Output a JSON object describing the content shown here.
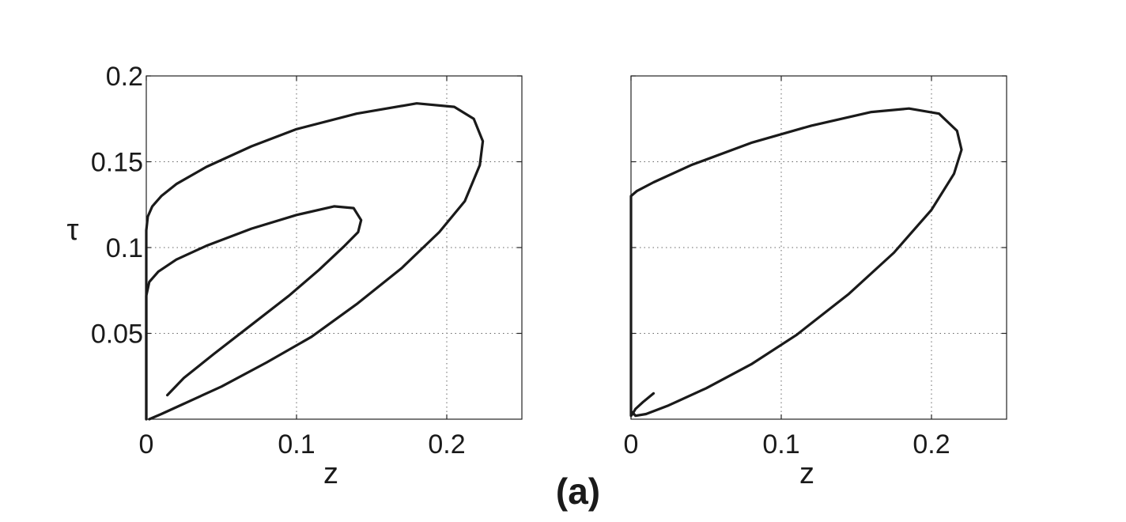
{
  "caption": "(a)",
  "chart_data": [
    {
      "type": "line",
      "xlabel": "z",
      "ylabel": "τ",
      "xlim": [
        0,
        0.25
      ],
      "ylim": [
        0,
        0.2
      ],
      "xticks": [
        0,
        0.1,
        0.2
      ],
      "xtick_labels": [
        "0",
        "0.1",
        "0.2"
      ],
      "yticks": [
        0.05,
        0.1,
        0.15,
        0.2
      ],
      "ytick_labels": [
        "0.05",
        "0.1",
        "0.15",
        "0.2"
      ],
      "grid": true,
      "series": [
        {
          "x": [
            0.0,
            0.0,
            0.001,
            0.004,
            0.01,
            0.02,
            0.04,
            0.07,
            0.1,
            0.14,
            0.18,
            0.205,
            0.218,
            0.224,
            0.222,
            0.212,
            0.195,
            0.17,
            0.14,
            0.11,
            0.08,
            0.05,
            0.025,
            0.01,
            0.002
          ],
          "y": [
            0.0,
            0.11,
            0.118,
            0.124,
            0.13,
            0.137,
            0.147,
            0.159,
            0.169,
            0.178,
            0.184,
            0.182,
            0.175,
            0.162,
            0.148,
            0.127,
            0.109,
            0.088,
            0.067,
            0.048,
            0.033,
            0.019,
            0.009,
            0.003,
            0.0
          ]
        },
        {
          "x": [
            0.0,
            0.0,
            0.002,
            0.008,
            0.02,
            0.04,
            0.07,
            0.1,
            0.125,
            0.138,
            0.143,
            0.141,
            0.132,
            0.115,
            0.095,
            0.07,
            0.045,
            0.025,
            0.014
          ],
          "y": [
            0.0,
            0.072,
            0.08,
            0.086,
            0.093,
            0.101,
            0.111,
            0.119,
            0.124,
            0.123,
            0.116,
            0.109,
            0.101,
            0.087,
            0.072,
            0.055,
            0.038,
            0.024,
            0.014
          ]
        }
      ]
    },
    {
      "type": "line",
      "xlabel": "z",
      "ylabel": "",
      "xlim": [
        0,
        0.25
      ],
      "ylim": [
        0,
        0.2
      ],
      "xticks": [
        0,
        0.1,
        0.2
      ],
      "xtick_labels": [
        "0",
        "0.1",
        "0.2"
      ],
      "yticks": [
        0.05,
        0.1,
        0.15,
        0.2
      ],
      "ytick_labels": [],
      "grid": true,
      "series": [
        {
          "x": [
            0.015,
            0.008,
            0.003,
            0.001,
            0.0,
            0.0,
            0.0,
            0.004,
            0.015,
            0.04,
            0.08,
            0.12,
            0.16,
            0.185,
            0.205,
            0.217,
            0.22,
            0.215,
            0.2,
            0.175,
            0.145,
            0.11,
            0.08,
            0.05,
            0.025,
            0.01,
            0.003,
            0.001
          ],
          "y": [
            0.015,
            0.01,
            0.006,
            0.003,
            0.002,
            0.06,
            0.13,
            0.133,
            0.138,
            0.148,
            0.161,
            0.171,
            0.179,
            0.181,
            0.178,
            0.168,
            0.157,
            0.143,
            0.122,
            0.097,
            0.073,
            0.049,
            0.032,
            0.018,
            0.008,
            0.003,
            0.002,
            0.004
          ]
        }
      ]
    }
  ]
}
